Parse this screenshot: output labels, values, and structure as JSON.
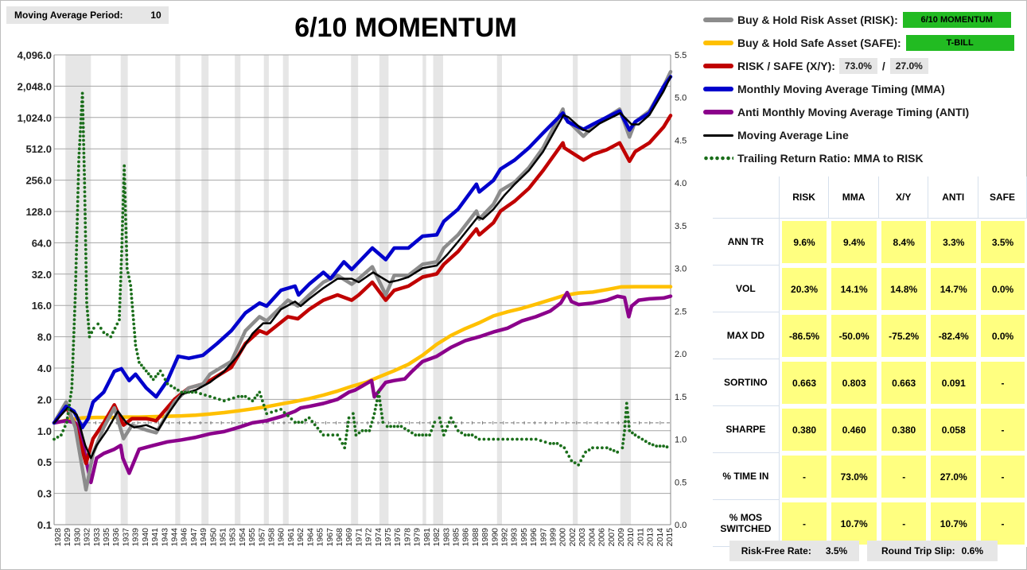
{
  "header": {
    "period_label": "Moving Average Period:",
    "period_value": "10",
    "title": "6/10 MOMENTUM"
  },
  "legend": {
    "risk_label": "Buy & Hold Risk Asset (RISK):",
    "risk_tag": "6/10 MOMENTUM",
    "safe_label": "Buy & Hold Safe Asset (SAFE):",
    "safe_tag": "T-BILL",
    "xy_label": "RISK / SAFE (X/Y):",
    "xy_risk_pct": "73.0%",
    "xy_slash": "/",
    "xy_safe_pct": "27.0%",
    "mma_label": "Monthly Moving Average Timing (MMA)",
    "anti_label": "Anti Monthly Moving Average Timing (ANTI)",
    "ma_label": "Moving Average Line",
    "ratio_label": "Trailing Return Ratio: MMA to RISK"
  },
  "stats": {
    "columns": [
      "RISK",
      "MMA",
      "X/Y",
      "ANTI",
      "SAFE"
    ],
    "rows": [
      {
        "label": "ANN TR",
        "values": [
          "9.6%",
          "9.4%",
          "8.4%",
          "3.3%",
          "3.5%"
        ]
      },
      {
        "label": "VOL",
        "values": [
          "20.3%",
          "14.1%",
          "14.8%",
          "14.7%",
          "0.0%"
        ]
      },
      {
        "label": "MAX DD",
        "values": [
          "-86.5%",
          "-50.0%",
          "-75.2%",
          "-82.4%",
          "0.0%"
        ]
      },
      {
        "label": "SORTINO",
        "values": [
          "0.663",
          "0.803",
          "0.663",
          "0.091",
          "-"
        ]
      },
      {
        "label": "SHARPE",
        "values": [
          "0.380",
          "0.460",
          "0.380",
          "0.058",
          "-"
        ]
      },
      {
        "label": "% TIME IN",
        "values": [
          "-",
          "73.0%",
          "-",
          "27.0%",
          "-"
        ]
      },
      {
        "label": "% MOS SWITCHED",
        "values": [
          "-",
          "10.7%",
          "-",
          "10.7%",
          "-"
        ]
      }
    ]
  },
  "footer": {
    "rf_label": "Risk-Free Rate:",
    "rf_value": "3.5%",
    "slip_label": "Round Trip Slip:",
    "slip_value": "0.6%"
  },
  "colors": {
    "risk": "#8c8c8c",
    "safe": "#ffc000",
    "xy": "#c00000",
    "mma": "#0000cc",
    "anti": "#8b008b",
    "ma": "#000000",
    "ratio": "#1b6e1b",
    "shade": "#e6e6e6",
    "grid": "#a6a6a6"
  },
  "chart_data": {
    "type": "line",
    "title": "6/10 MOMENTUM",
    "y_scale": "log2",
    "ylim": [
      0.1,
      4096
    ],
    "y_ticks": [
      "4,096.0",
      "2,048.0",
      "1,024.0",
      "512.0",
      "256.0",
      "128.0",
      "64.0",
      "32.0",
      "16.0",
      "8.0",
      "4.0",
      "2.0",
      "1.0",
      "0.5",
      "0.3",
      "0.1"
    ],
    "y2lim": [
      0.0,
      5.5
    ],
    "y2_ticks": [
      "5.5",
      "5.0",
      "4.5",
      "4.0",
      "3.5",
      "3.0",
      "2.5",
      "2.0",
      "1.5",
      "1.0",
      "0.5",
      "0.0"
    ],
    "xlim": [
      1928,
      2015
    ],
    "x_ticks": [
      "1928",
      "1929",
      "1930",
      "1932",
      "1933",
      "1935",
      "1936",
      "1937",
      "1939",
      "1940",
      "1941",
      "1943",
      "1944",
      "1946",
      "1947",
      "1949",
      "1950",
      "1951",
      "1953",
      "1954",
      "1955",
      "1957",
      "1958",
      "1960",
      "1961",
      "1962",
      "1964",
      "1965",
      "1967",
      "1968",
      "1969",
      "1971",
      "1972",
      "1974",
      "1975",
      "1976",
      "1978",
      "1979",
      "1981",
      "1982",
      "1983",
      "1985",
      "1986",
      "1988",
      "1989",
      "1990",
      "1992",
      "1993",
      "1995",
      "1996",
      "1997",
      "1999",
      "2000",
      "2002",
      "2003",
      "2004",
      "2006",
      "2007",
      "2009",
      "2010",
      "2011",
      "2013",
      "2014",
      "2015"
    ],
    "shaded_periods": [
      [
        1929.6,
        1933.2
      ],
      [
        1937.4,
        1938.4
      ],
      [
        1945.1,
        1945.8
      ],
      [
        1948.8,
        1949.8
      ],
      [
        1953.5,
        1954.3
      ],
      [
        1957.6,
        1958.3
      ],
      [
        1960.3,
        1961.1
      ],
      [
        1969.9,
        1970.9
      ],
      [
        1973.9,
        1975.2
      ],
      [
        1980.0,
        1980.5
      ],
      [
        1981.5,
        1982.9
      ],
      [
        1990.5,
        1991.2
      ],
      [
        2001.2,
        2001.9
      ],
      [
        2007.9,
        2009.4
      ]
    ],
    "series": [
      {
        "name": "Buy & Hold Risk Asset (RISK)",
        "key": "risk",
        "x": [
          1928,
          1929.7,
          1931,
          1932.5,
          1933.5,
          1935,
          1936.5,
          1937.8,
          1939,
          1941,
          1942.4,
          1945,
          1947,
          1949,
          1950,
          1953,
          1955,
          1957,
          1958,
          1961,
          1962.4,
          1964,
          1966,
          1968,
          1970,
          1971,
          1972.9,
          1974.8,
          1976,
          1978,
          1980,
          1982,
          1983,
          1985,
          1987.6,
          1988,
          1990,
          1991,
          1993,
          1995,
          1997,
          1999.8,
          2000,
          2002.7,
          2004,
          2006,
          2007.8,
          2009.2,
          2010,
          2012,
          2014,
          2015
        ],
        "y": [
          1.0,
          1.6,
          0.9,
          0.22,
          0.5,
          0.9,
          1.4,
          0.7,
          0.95,
          0.85,
          0.8,
          1.6,
          2.2,
          2.4,
          3.0,
          4.0,
          8.0,
          11.0,
          10.0,
          16.0,
          14.0,
          18.0,
          24.0,
          28.0,
          23.0,
          26.0,
          34.0,
          18.0,
          28.0,
          28.0,
          36.0,
          38.0,
          52.0,
          70.0,
          120.0,
          100.0,
          140.0,
          190.0,
          230.0,
          320.0,
          500.0,
          1200.0,
          1000.0,
          650.0,
          800.0,
          1000.0,
          1200.0,
          640.0,
          900.0,
          1150.0,
          2000.0,
          2800.0
        ]
      },
      {
        "name": "Buy & Hold Safe Asset (SAFE)",
        "key": "safe",
        "x": [
          1928,
          1930,
          1932,
          1934,
          1936,
          1938,
          1940,
          1942,
          1944,
          1946,
          1948,
          1950,
          1952,
          1954,
          1956,
          1958,
          1960,
          1962,
          1964,
          1966,
          1968,
          1970,
          1972,
          1974,
          1976,
          1978,
          1980,
          1982,
          1984,
          1986,
          1988,
          1990,
          1992,
          1994,
          1996,
          1998,
          2000,
          2002,
          2004,
          2006,
          2008,
          2010,
          2012,
          2015
        ],
        "y": [
          1.0,
          1.07,
          1.12,
          1.13,
          1.13,
          1.14,
          1.14,
          1.15,
          1.16,
          1.17,
          1.19,
          1.22,
          1.26,
          1.31,
          1.37,
          1.44,
          1.53,
          1.62,
          1.73,
          1.87,
          2.05,
          2.28,
          2.5,
          2.85,
          3.25,
          3.75,
          4.6,
          5.9,
          7.2,
          8.4,
          9.6,
          11.2,
          12.3,
          13.3,
          14.6,
          16.1,
          17.8,
          18.8,
          19.2,
          20.3,
          21.6,
          21.7,
          21.7,
          21.7
        ]
      },
      {
        "name": "RISK / SAFE (X/Y)",
        "key": "xy",
        "x": [
          1928,
          1929.7,
          1931,
          1932.5,
          1933.5,
          1935,
          1936.5,
          1937.8,
          1939,
          1941,
          1942.4,
          1945,
          1947,
          1949,
          1950,
          1953,
          1955,
          1957,
          1958,
          1961,
          1962.4,
          1964,
          1966,
          1968,
          1970,
          1971,
          1972.9,
          1974.8,
          1976,
          1978,
          1980,
          1982,
          1983,
          1985,
          1987.6,
          1988,
          1990,
          1991,
          1993,
          1995,
          1997,
          1999.8,
          2000,
          2002.7,
          2004,
          2006,
          2007.8,
          2009.2,
          2010,
          2012,
          2014,
          2015
        ],
        "y": [
          1.0,
          1.45,
          0.95,
          0.4,
          0.7,
          1.0,
          1.5,
          0.95,
          1.1,
          1.1,
          1.05,
          1.7,
          2.2,
          2.4,
          2.6,
          3.5,
          6.0,
          8.0,
          7.5,
          11.0,
          10.5,
          13.0,
          16.0,
          18.0,
          16.0,
          18.0,
          24.0,
          16.0,
          20.0,
          22.0,
          27.0,
          29.0,
          36.0,
          48.0,
          80.0,
          70.0,
          92.0,
          120.0,
          150.0,
          200.0,
          300.0,
          560.0,
          500.0,
          380.0,
          430.0,
          480.0,
          560.0,
          370.0,
          460.0,
          560.0,
          800.0,
          1040.0
        ]
      },
      {
        "name": "Monthly Moving Average Timing (MMA)",
        "key": "mma",
        "x": [
          1928,
          1929.7,
          1930.8,
          1932,
          1932.8,
          1933.5,
          1935,
          1936.5,
          1937.5,
          1938.6,
          1939.5,
          1941,
          1942.4,
          1944,
          1945.5,
          1947,
          1949,
          1951,
          1953,
          1955,
          1957,
          1958,
          1960,
          1962,
          1962.5,
          1964,
          1966,
          1967,
          1968.9,
          1970,
          1972.9,
          1974.8,
          1976,
          1978,
          1980,
          1982,
          1983,
          1985,
          1987.6,
          1988,
          1990,
          1991,
          1993,
          1995,
          1997,
          1999.8,
          2000.5,
          2002.7,
          2004,
          2006,
          2007.8,
          2009.2,
          2010,
          2012,
          2014,
          2015
        ],
        "y": [
          1.0,
          1.45,
          1.3,
          0.9,
          1.1,
          1.6,
          2.0,
          3.2,
          3.4,
          2.6,
          3.0,
          2.2,
          1.8,
          2.6,
          4.5,
          4.3,
          4.6,
          6.0,
          8.0,
          12.0,
          15.0,
          14.0,
          20.0,
          22.0,
          18.0,
          23.0,
          30.0,
          26.0,
          38.0,
          32.0,
          52.0,
          40.0,
          52.0,
          52.0,
          68.0,
          70.0,
          95.0,
          125.0,
          220.0,
          185.0,
          240.0,
          310.0,
          380.0,
          500.0,
          700.0,
          1100.0,
          900.0,
          760.0,
          850.0,
          1000.0,
          1150.0,
          750.0,
          900.0,
          1100.0,
          2000.0,
          2500.0
        ]
      },
      {
        "name": "Anti Monthly Moving Average Timing (ANTI)",
        "key": "anti",
        "x": [
          1928,
          1929.7,
          1931,
          1931.7,
          1932.6,
          1933.2,
          1934,
          1935,
          1936.5,
          1937.4,
          1937.7,
          1938.6,
          1940,
          1942,
          1944,
          1946,
          1948,
          1950,
          1952,
          1954,
          1956,
          1958,
          1960,
          1962,
          1962.8,
          1964,
          1966,
          1968,
          1969.6,
          1970.5,
          1971.5,
          1972.8,
          1973.2,
          1974.8,
          1976,
          1977.5,
          1978.5,
          1980,
          1982,
          1984,
          1986,
          1988,
          1990,
          1992,
          1994,
          1996,
          1998,
          1999.5,
          2000.4,
          2001,
          2002,
          2004,
          2006,
          2007.5,
          2008.5,
          2009.1,
          2009.5,
          2010.5,
          2012,
          2014,
          2015
        ],
        "y": [
          1.0,
          1.05,
          1.0,
          0.85,
          0.4,
          0.26,
          0.45,
          0.5,
          0.55,
          0.6,
          0.45,
          0.32,
          0.55,
          0.6,
          0.65,
          0.68,
          0.72,
          0.78,
          0.82,
          0.9,
          1.0,
          1.05,
          1.15,
          1.3,
          1.4,
          1.45,
          1.55,
          1.7,
          2.0,
          2.1,
          2.3,
          2.6,
          1.8,
          2.5,
          2.6,
          2.7,
          3.2,
          4.0,
          4.5,
          5.5,
          6.4,
          7.0,
          7.8,
          8.5,
          10.0,
          11.0,
          12.5,
          15.0,
          19.0,
          15.5,
          14.5,
          15.0,
          16.0,
          17.5,
          17.0,
          11.0,
          14.0,
          16.0,
          16.5,
          16.8,
          17.5
        ]
      },
      {
        "name": "Moving Average Line",
        "key": "ma",
        "x": [
          1928,
          1929.9,
          1931.2,
          1932.4,
          1933.2,
          1934,
          1935.5,
          1937,
          1938.2,
          1939.3,
          1941,
          1942.7,
          1944,
          1946,
          1948,
          1950,
          1952,
          1954,
          1956,
          1957.5,
          1958.5,
          1960,
          1962,
          1962.8,
          1964,
          1966,
          1968,
          1970,
          1971,
          1973,
          1975.3,
          1976.5,
          1978,
          1980,
          1982,
          1983.5,
          1985,
          1987.8,
          1988.5,
          1990,
          1991.5,
          1993,
          1995,
          1997,
          1999.9,
          2000.6,
          2002.5,
          2003.5,
          2005,
          2007.9,
          2009.5,
          2010.5,
          2012,
          2014,
          2015
        ],
        "y": [
          1.0,
          1.4,
          1.2,
          0.6,
          0.45,
          0.6,
          0.85,
          1.3,
          1.0,
          0.9,
          0.95,
          0.85,
          1.2,
          1.9,
          2.1,
          2.5,
          3.2,
          4.6,
          7.5,
          9.5,
          9.5,
          13.0,
          15.5,
          14.0,
          16.5,
          21.0,
          26.0,
          26.0,
          24.0,
          30.0,
          24.0,
          25.0,
          27.0,
          33.0,
          35.0,
          45.0,
          60.0,
          105.0,
          100.0,
          125.0,
          170.0,
          220.0,
          300.0,
          460.0,
          1050.0,
          1000.0,
          760.0,
          720.0,
          870.0,
          1100.0,
          850.0,
          850.0,
          1050.0,
          1800.0,
          2500.0
        ]
      },
      {
        "name": "Trailing Return Ratio: MMA to RISK",
        "key": "ratio",
        "axis": "right",
        "x": [
          1928,
          1929,
          1929.8,
          1930.5,
          1931,
          1931.5,
          1932,
          1932.3,
          1932.6,
          1933,
          1933.6,
          1934.2,
          1935,
          1936,
          1937.2,
          1937.5,
          1937.9,
          1938.3,
          1938.8,
          1939.5,
          1940,
          1941,
          1942,
          1943,
          1944,
          1945,
          1946,
          1947,
          1948,
          1950,
          1952,
          1954,
          1955,
          1956,
          1957,
          1958,
          1960,
          1962,
          1963,
          1964,
          1966,
          1968,
          1969,
          1969.6,
          1970.2,
          1970.6,
          1971.5,
          1972.5,
          1973.2,
          1973.8,
          1974.4,
          1975,
          1976,
          1977,
          1978,
          1979,
          1980,
          1981,
          1981.7,
          1982.4,
          1983,
          1984,
          1985,
          1986,
          1987,
          1988,
          1990,
          1992,
          1994,
          1996,
          1998,
          1999,
          2000,
          2001,
          2002,
          2003,
          2004,
          2006,
          2007.5,
          2008.2,
          2008.5,
          2008.8,
          2009.2,
          2010,
          2011,
          2012,
          2013,
          2014,
          2015
        ],
        "y": [
          1.0,
          1.05,
          1.2,
          1.6,
          2.7,
          4.3,
          5.05,
          4.0,
          2.6,
          2.2,
          2.3,
          2.35,
          2.25,
          2.2,
          2.4,
          3.1,
          4.2,
          3.0,
          2.8,
          2.1,
          1.9,
          1.8,
          1.7,
          1.8,
          1.65,
          1.6,
          1.55,
          1.55,
          1.55,
          1.5,
          1.45,
          1.5,
          1.5,
          1.45,
          1.55,
          1.3,
          1.35,
          1.2,
          1.2,
          1.25,
          1.05,
          1.05,
          0.9,
          1.25,
          1.3,
          1.05,
          1.1,
          1.1,
          1.3,
          1.55,
          1.2,
          1.15,
          1.15,
          1.15,
          1.1,
          1.05,
          1.05,
          1.05,
          1.2,
          1.25,
          1.05,
          1.25,
          1.1,
          1.05,
          1.05,
          1.0,
          1.0,
          1.0,
          1.0,
          1.0,
          0.95,
          0.95,
          0.9,
          0.75,
          0.7,
          0.85,
          0.9,
          0.9,
          0.85,
          0.9,
          1.1,
          1.42,
          1.1,
          1.05,
          1.0,
          0.95,
          0.92,
          0.92,
          0.9
        ]
      }
    ]
  }
}
